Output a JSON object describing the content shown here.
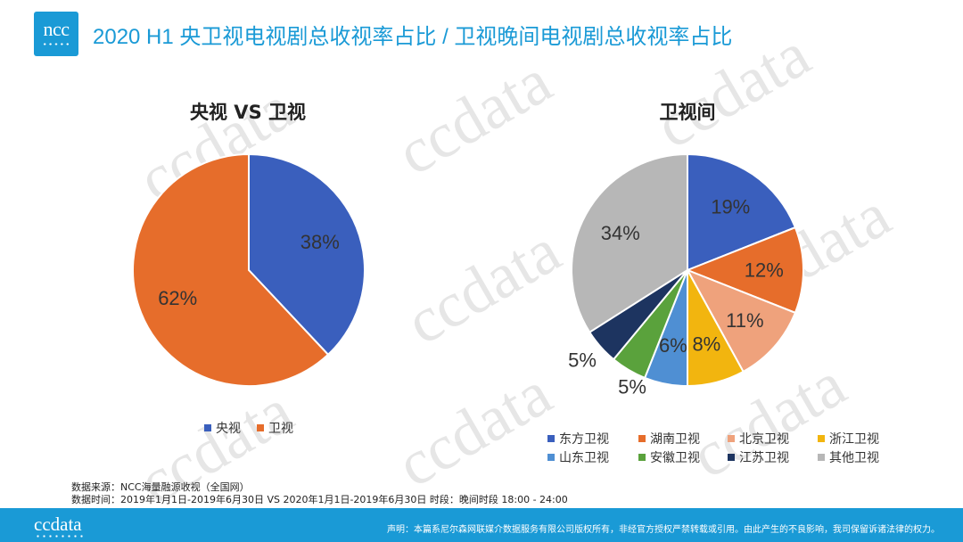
{
  "header": {
    "logo_text": "ncc",
    "title": "2020 H1 央卫视电视剧总收视率占比 / 卫视晚间电视剧总收视率占比"
  },
  "watermark": "ccdata",
  "chart_data": [
    {
      "type": "pie",
      "title": "央视 VS 卫视",
      "categories": [
        "央视",
        "卫视"
      ],
      "values": [
        38,
        62
      ],
      "labels": [
        "38%",
        "62%"
      ],
      "colors": [
        "#3a5fbd",
        "#e66d2b"
      ],
      "legend": "bottom"
    },
    {
      "type": "pie",
      "title": "卫视间",
      "categories": [
        "东方卫视",
        "湖南卫视",
        "北京卫视",
        "浙江卫视",
        "山东卫视",
        "安徽卫视",
        "江苏卫视",
        "其他卫视"
      ],
      "values": [
        19,
        12,
        11,
        8,
        6,
        5,
        5,
        34
      ],
      "labels": [
        "19%",
        "12%",
        "11%",
        "8%",
        "6%",
        "5%",
        "5%",
        "34%"
      ],
      "colors": [
        "#3a5fbd",
        "#e66d2b",
        "#efa27c",
        "#f2b50f",
        "#4f8fd3",
        "#5aa23c",
        "#1d3460",
        "#b7b7b7"
      ],
      "legend": "bottom"
    }
  ],
  "source": {
    "line1": "数据来源：NCC海量融源收视（全国网）",
    "line2": "数据时间：2019年1月1日-2019年6月30日 VS 2020年1月1日-2019年6月30日 时段：晚间时段 18:00 - 24:00"
  },
  "footer": {
    "logo_text": "ccdata",
    "disclaimer": "声明：本篇系尼尔森网联媒介数据服务有限公司版权所有，非经官方授权严禁转载或引用。由此产生的不良影响，我司保留诉诸法律的权力。"
  }
}
